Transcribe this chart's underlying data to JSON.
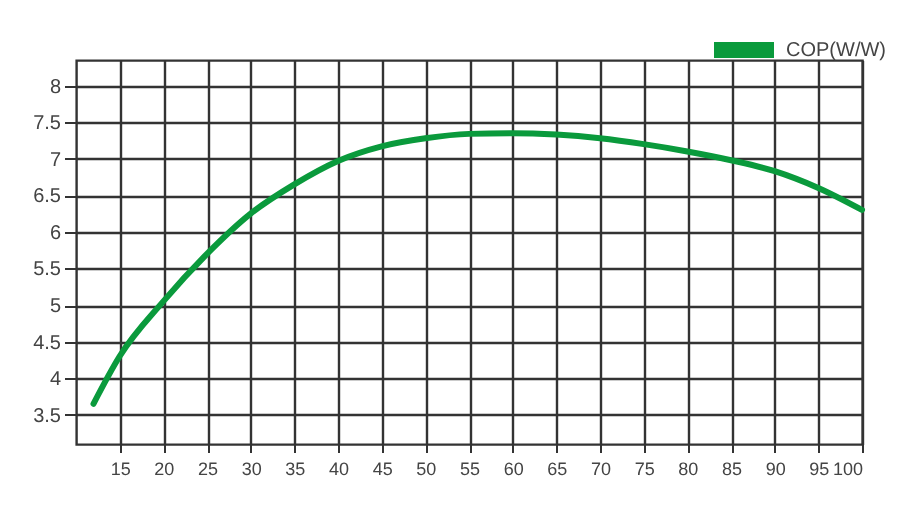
{
  "chart_data": {
    "type": "line",
    "x": [
      12,
      15,
      20,
      25,
      30,
      35,
      40,
      45,
      50,
      55,
      60,
      65,
      70,
      75,
      80,
      85,
      90,
      95,
      100
    ],
    "series": [
      {
        "name": "COP(W/W)",
        "color": "#0a9a3c",
        "values": [
          3.65,
          4.3,
          5.05,
          5.7,
          6.25,
          6.65,
          6.97,
          7.17,
          7.28,
          7.34,
          7.35,
          7.33,
          7.28,
          7.2,
          7.1,
          6.98,
          6.83,
          6.6,
          6.3
        ]
      }
    ],
    "xlim": [
      10,
      100
    ],
    "xticks": [
      15,
      20,
      25,
      30,
      35,
      40,
      45,
      50,
      55,
      60,
      65,
      70,
      75,
      80,
      85,
      90,
      95,
      100
    ],
    "ylim": [
      3.1,
      8.35
    ],
    "yticks": [
      3.5,
      4,
      4.5,
      5,
      5.5,
      6,
      6.5,
      7,
      7.5,
      8
    ],
    "grid": true,
    "legend": "top right",
    "marker": "none",
    "line_style": "solid"
  }
}
